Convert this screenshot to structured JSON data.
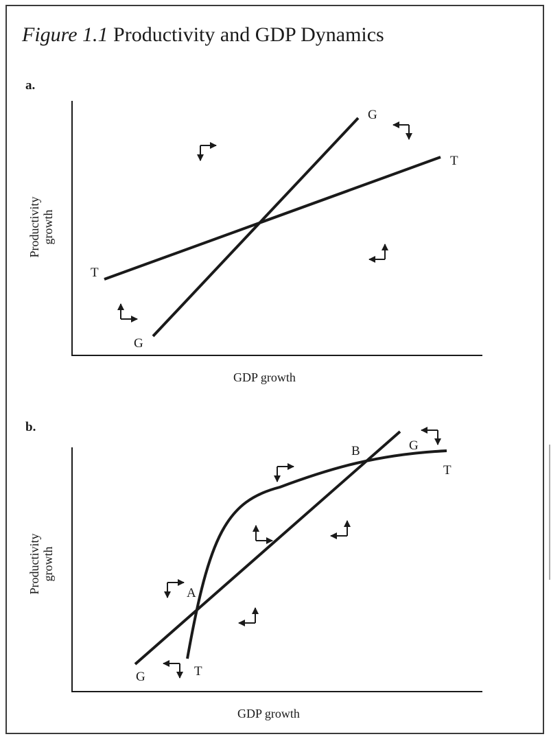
{
  "figure": {
    "number": "Figure 1.1",
    "title": "Productivity and GDP Dynamics"
  },
  "panels": [
    {
      "id": "a",
      "label": "a.",
      "xlabel": "GDP growth",
      "ylabel_lines": [
        "Productivity",
        "growth"
      ],
      "curves": [
        {
          "name": "G",
          "shape": "straight line",
          "end_labels": [
            "G",
            "G"
          ]
        },
        {
          "name": "T",
          "shape": "straight line",
          "end_labels": [
            "T",
            "T"
          ]
        }
      ],
      "arrow_glyphs": [
        "down-right",
        "down-right",
        "up-right",
        "up-left",
        "up-left"
      ]
    },
    {
      "id": "b",
      "label": "b.",
      "xlabel": "GDP growth",
      "ylabel_lines": [
        "Productivity",
        "growth"
      ],
      "curves": [
        {
          "name": "G",
          "shape": "straight line",
          "end_labels": [
            "G",
            "G"
          ]
        },
        {
          "name": "T",
          "shape": "concave curve",
          "end_labels": [
            "T",
            "T"
          ]
        }
      ],
      "intersection_labels": [
        "A",
        "B"
      ],
      "arrow_glyphs": [
        "down-right",
        "down-right",
        "up-right",
        "up-left",
        "up-left",
        "up-left",
        "up-left"
      ]
    }
  ]
}
